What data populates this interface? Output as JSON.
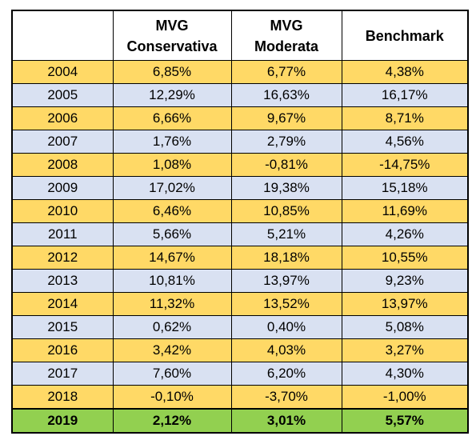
{
  "table": {
    "headers": [
      {
        "line1": "",
        "line2": ""
      },
      {
        "line1": "MVG",
        "line2": "Conservativa"
      },
      {
        "line1": "MVG",
        "line2": "Moderata"
      },
      {
        "line1": "Benchmark",
        "line2": ""
      }
    ],
    "rows": [
      {
        "year": "2004",
        "conservativa": "6,85%",
        "moderata": "6,77%",
        "benchmark": "4,38%"
      },
      {
        "year": "2005",
        "conservativa": "12,29%",
        "moderata": "16,63%",
        "benchmark": "16,17%"
      },
      {
        "year": "2006",
        "conservativa": "6,66%",
        "moderata": "9,67%",
        "benchmark": "8,71%"
      },
      {
        "year": "2007",
        "conservativa": "1,76%",
        "moderata": "2,79%",
        "benchmark": "4,56%"
      },
      {
        "year": "2008",
        "conservativa": "1,08%",
        "moderata": "-0,81%",
        "benchmark": "-14,75%"
      },
      {
        "year": "2009",
        "conservativa": "17,02%",
        "moderata": "19,38%",
        "benchmark": "15,18%"
      },
      {
        "year": "2010",
        "conservativa": "6,46%",
        "moderata": "10,85%",
        "benchmark": "11,69%"
      },
      {
        "year": "2011",
        "conservativa": "5,66%",
        "moderata": "5,21%",
        "benchmark": "4,26%"
      },
      {
        "year": "2012",
        "conservativa": "14,67%",
        "moderata": "18,18%",
        "benchmark": "10,55%"
      },
      {
        "year": "2013",
        "conservativa": "10,81%",
        "moderata": "13,97%",
        "benchmark": "9,23%"
      },
      {
        "year": "2014",
        "conservativa": "11,32%",
        "moderata": "13,52%",
        "benchmark": "13,97%"
      },
      {
        "year": "2015",
        "conservativa": "0,62%",
        "moderata": "0,40%",
        "benchmark": "5,08%"
      },
      {
        "year": "2016",
        "conservativa": "3,42%",
        "moderata": "4,03%",
        "benchmark": "3,27%"
      },
      {
        "year": "2017",
        "conservativa": "7,60%",
        "moderata": "6,20%",
        "benchmark": "4,30%"
      },
      {
        "year": "2018",
        "conservativa": "-0,10%",
        "moderata": "-3,70%",
        "benchmark": "-1,00%"
      }
    ],
    "total_row": {
      "year": "2019",
      "conservativa": "2,12%",
      "moderata": "3,01%",
      "benchmark": "5,57%"
    },
    "colors": {
      "row_odd": "#ffd966",
      "row_even": "#d9e1f2",
      "row_total": "#92d050",
      "header": "#ffffff",
      "border": "#000000"
    }
  }
}
